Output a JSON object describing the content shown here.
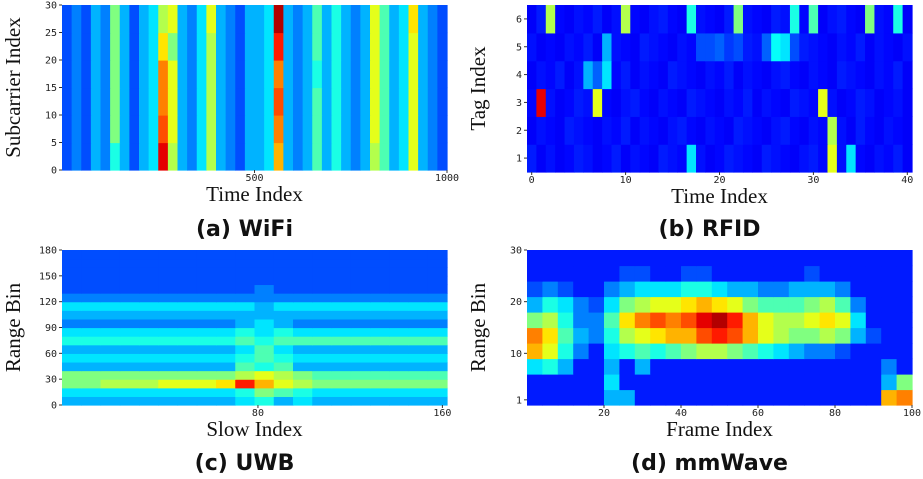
{
  "chart_data": [
    {
      "type": "heatmap",
      "caption": "(a) WiFi",
      "xlabel": "Time Index",
      "ylabel": "Subcarrier Index",
      "xlim": [
        0,
        1000
      ],
      "ylim": [
        0,
        30
      ],
      "xticks": [
        500,
        1000
      ],
      "yticks": [
        0,
        5,
        10,
        15,
        20,
        25,
        30
      ],
      "zlim": [
        0,
        1
      ],
      "colormap": "jet",
      "z": [
        [
          0.2,
          0.25,
          0.2,
          0.3,
          0.25,
          0.4,
          0.3,
          0.2,
          0.3,
          0.35,
          0.9,
          0.55,
          0.3,
          0.25,
          0.35,
          0.55,
          0.3,
          0.25,
          0.2,
          0.3,
          0.3,
          0.35,
          0.7,
          0.3,
          0.25,
          0.3,
          0.45,
          0.3,
          0.4,
          0.3,
          0.25,
          0.3,
          0.55,
          0.45,
          0.3,
          0.35,
          0.6,
          0.3,
          0.25,
          0.2
        ],
        [
          0.2,
          0.25,
          0.2,
          0.3,
          0.25,
          0.5,
          0.3,
          0.2,
          0.3,
          0.35,
          0.8,
          0.6,
          0.3,
          0.25,
          0.35,
          0.55,
          0.3,
          0.25,
          0.2,
          0.3,
          0.3,
          0.35,
          0.75,
          0.3,
          0.25,
          0.3,
          0.45,
          0.3,
          0.4,
          0.3,
          0.25,
          0.3,
          0.6,
          0.45,
          0.3,
          0.35,
          0.6,
          0.3,
          0.25,
          0.2
        ],
        [
          0.2,
          0.25,
          0.2,
          0.3,
          0.25,
          0.5,
          0.3,
          0.2,
          0.3,
          0.35,
          0.75,
          0.6,
          0.3,
          0.25,
          0.35,
          0.55,
          0.3,
          0.25,
          0.2,
          0.3,
          0.3,
          0.35,
          0.8,
          0.3,
          0.25,
          0.3,
          0.45,
          0.3,
          0.4,
          0.3,
          0.25,
          0.3,
          0.6,
          0.45,
          0.3,
          0.35,
          0.6,
          0.3,
          0.25,
          0.2
        ],
        [
          0.2,
          0.25,
          0.2,
          0.3,
          0.25,
          0.5,
          0.3,
          0.2,
          0.3,
          0.35,
          0.75,
          0.6,
          0.3,
          0.25,
          0.35,
          0.55,
          0.3,
          0.25,
          0.2,
          0.3,
          0.3,
          0.35,
          0.75,
          0.3,
          0.25,
          0.3,
          0.4,
          0.3,
          0.4,
          0.3,
          0.25,
          0.3,
          0.6,
          0.45,
          0.3,
          0.35,
          0.6,
          0.3,
          0.25,
          0.2
        ],
        [
          0.2,
          0.25,
          0.2,
          0.3,
          0.25,
          0.5,
          0.3,
          0.2,
          0.3,
          0.35,
          0.65,
          0.5,
          0.3,
          0.25,
          0.35,
          0.55,
          0.3,
          0.25,
          0.2,
          0.3,
          0.3,
          0.35,
          0.85,
          0.3,
          0.25,
          0.3,
          0.45,
          0.3,
          0.4,
          0.3,
          0.25,
          0.3,
          0.6,
          0.45,
          0.3,
          0.35,
          0.6,
          0.3,
          0.25,
          0.2
        ],
        [
          0.2,
          0.25,
          0.2,
          0.3,
          0.25,
          0.5,
          0.3,
          0.2,
          0.3,
          0.35,
          0.55,
          0.6,
          0.3,
          0.25,
          0.35,
          0.6,
          0.3,
          0.25,
          0.2,
          0.3,
          0.3,
          0.35,
          0.95,
          0.3,
          0.25,
          0.3,
          0.45,
          0.3,
          0.4,
          0.3,
          0.25,
          0.3,
          0.6,
          0.45,
          0.3,
          0.35,
          0.65,
          0.3,
          0.25,
          0.2
        ]
      ]
    },
    {
      "type": "heatmap",
      "caption": "(b) RFID",
      "xlabel": "Time Index",
      "ylabel": "Tag Index",
      "xlim": [
        -0.5,
        40.5
      ],
      "ylim": [
        0.5,
        6.5
      ],
      "xticks": [
        0,
        10,
        20,
        30,
        40
      ],
      "yticks": [
        1,
        2,
        3,
        4,
        5,
        6
      ],
      "zlim": [
        0,
        1
      ],
      "colormap": "jet",
      "z": [
        [
          0.15,
          0.12,
          0.14,
          0.12,
          0.13,
          0.15,
          0.14,
          0.12,
          0.13,
          0.15,
          0.12,
          0.14,
          0.13,
          0.12,
          0.15,
          0.14,
          0.13,
          0.35,
          0.14,
          0.12,
          0.13,
          0.15,
          0.14,
          0.13,
          0.12,
          0.15,
          0.14,
          0.13,
          0.12,
          0.14,
          0.15,
          0.13,
          0.6,
          0.14,
          0.35,
          0.13,
          0.12,
          0.14,
          0.13,
          0.15,
          0.12
        ],
        [
          0.12,
          0.14,
          0.13,
          0.12,
          0.15,
          0.14,
          0.13,
          0.12,
          0.14,
          0.13,
          0.15,
          0.12,
          0.14,
          0.13,
          0.12,
          0.14,
          0.15,
          0.13,
          0.12,
          0.14,
          0.13,
          0.12,
          0.15,
          0.14,
          0.13,
          0.12,
          0.14,
          0.15,
          0.13,
          0.12,
          0.14,
          0.13,
          0.55,
          0.14,
          0.12,
          0.15,
          0.13,
          0.12,
          0.14,
          0.13,
          0.12
        ],
        [
          0.13,
          0.9,
          0.14,
          0.12,
          0.13,
          0.15,
          0.14,
          0.6,
          0.13,
          0.12,
          0.14,
          0.15,
          0.13,
          0.12,
          0.14,
          0.13,
          0.12,
          0.15,
          0.14,
          0.13,
          0.12,
          0.14,
          0.13,
          0.15,
          0.12,
          0.14,
          0.13,
          0.12,
          0.15,
          0.14,
          0.13,
          0.6,
          0.14,
          0.12,
          0.13,
          0.15,
          0.14,
          0.12,
          0.13,
          0.14,
          0.12
        ],
        [
          0.12,
          0.14,
          0.13,
          0.15,
          0.12,
          0.14,
          0.3,
          0.22,
          0.35,
          0.13,
          0.15,
          0.12,
          0.14,
          0.13,
          0.12,
          0.15,
          0.14,
          0.13,
          0.12,
          0.14,
          0.13,
          0.15,
          0.12,
          0.14,
          0.13,
          0.12,
          0.14,
          0.15,
          0.13,
          0.12,
          0.14,
          0.13,
          0.12,
          0.15,
          0.14,
          0.13,
          0.12,
          0.14,
          0.13,
          0.15,
          0.12
        ],
        [
          0.14,
          0.12,
          0.13,
          0.12,
          0.14,
          0.13,
          0.15,
          0.12,
          0.3,
          0.14,
          0.13,
          0.12,
          0.15,
          0.14,
          0.13,
          0.12,
          0.14,
          0.13,
          0.2,
          0.2,
          0.22,
          0.18,
          0.2,
          0.15,
          0.14,
          0.22,
          0.38,
          0.35,
          0.2,
          0.15,
          0.14,
          0.13,
          0.12,
          0.14,
          0.13,
          0.15,
          0.12,
          0.14,
          0.13,
          0.12,
          0.14
        ],
        [
          0.12,
          0.15,
          0.55,
          0.13,
          0.12,
          0.14,
          0.13,
          0.15,
          0.12,
          0.14,
          0.55,
          0.13,
          0.12,
          0.14,
          0.15,
          0.13,
          0.12,
          0.4,
          0.14,
          0.13,
          0.12,
          0.15,
          0.5,
          0.14,
          0.13,
          0.12,
          0.15,
          0.14,
          0.4,
          0.13,
          0.45,
          0.12,
          0.14,
          0.15,
          0.13,
          0.12,
          0.5,
          0.14,
          0.13,
          0.4,
          0.12
        ]
      ]
    },
    {
      "type": "heatmap",
      "caption": "(c) UWB",
      "xlabel": "Slow Index",
      "ylabel": "Range Bin",
      "xlim": [
        -5,
        162
      ],
      "ylim": [
        0,
        180
      ],
      "xticks": [
        80,
        160
      ],
      "yticks": [
        0,
        30,
        60,
        90,
        120,
        150,
        180
      ],
      "zlim": [
        0,
        1
      ],
      "colormap": "jet",
      "z": [
        [
          0.3,
          0.3,
          0.3,
          0.3,
          0.3,
          0.3,
          0.3,
          0.3,
          0.3,
          0.35,
          0.4,
          0.3,
          0.35,
          0.3,
          0.3,
          0.3,
          0.3,
          0.3,
          0.3,
          0.3
        ],
        [
          0.35,
          0.35,
          0.35,
          0.35,
          0.35,
          0.35,
          0.35,
          0.35,
          0.35,
          0.4,
          0.5,
          0.45,
          0.4,
          0.35,
          0.35,
          0.35,
          0.35,
          0.35,
          0.35,
          0.35
        ],
        [
          0.5,
          0.5,
          0.55,
          0.55,
          0.55,
          0.6,
          0.6,
          0.6,
          0.65,
          0.85,
          0.7,
          0.6,
          0.55,
          0.5,
          0.5,
          0.5,
          0.5,
          0.5,
          0.5,
          0.5
        ],
        [
          0.5,
          0.5,
          0.5,
          0.5,
          0.5,
          0.5,
          0.5,
          0.5,
          0.5,
          0.55,
          0.6,
          0.55,
          0.5,
          0.45,
          0.45,
          0.45,
          0.45,
          0.45,
          0.45,
          0.45
        ],
        [
          0.3,
          0.3,
          0.3,
          0.3,
          0.3,
          0.3,
          0.3,
          0.3,
          0.3,
          0.45,
          0.4,
          0.45,
          0.3,
          0.3,
          0.3,
          0.3,
          0.3,
          0.3,
          0.3,
          0.3
        ],
        [
          0.35,
          0.35,
          0.35,
          0.35,
          0.35,
          0.35,
          0.35,
          0.35,
          0.35,
          0.4,
          0.45,
          0.4,
          0.35,
          0.35,
          0.35,
          0.35,
          0.35,
          0.35,
          0.35,
          0.35
        ],
        [
          0.3,
          0.3,
          0.3,
          0.3,
          0.3,
          0.3,
          0.3,
          0.3,
          0.3,
          0.35,
          0.45,
          0.35,
          0.3,
          0.3,
          0.3,
          0.3,
          0.3,
          0.3,
          0.3,
          0.3
        ],
        [
          0.4,
          0.4,
          0.4,
          0.4,
          0.4,
          0.4,
          0.4,
          0.4,
          0.4,
          0.45,
          0.4,
          0.45,
          0.45,
          0.45,
          0.45,
          0.45,
          0.45,
          0.45,
          0.45,
          0.45
        ],
        [
          0.35,
          0.35,
          0.35,
          0.35,
          0.35,
          0.35,
          0.35,
          0.35,
          0.35,
          0.4,
          0.35,
          0.4,
          0.35,
          0.35,
          0.35,
          0.35,
          0.35,
          0.35,
          0.35,
          0.35
        ],
        [
          0.25,
          0.25,
          0.25,
          0.25,
          0.25,
          0.25,
          0.25,
          0.25,
          0.25,
          0.3,
          0.35,
          0.3,
          0.25,
          0.25,
          0.25,
          0.25,
          0.25,
          0.25,
          0.25,
          0.25
        ],
        [
          0.3,
          0.3,
          0.3,
          0.3,
          0.3,
          0.3,
          0.3,
          0.3,
          0.3,
          0.3,
          0.3,
          0.3,
          0.3,
          0.3,
          0.3,
          0.3,
          0.3,
          0.3,
          0.3,
          0.3
        ],
        [
          0.35,
          0.35,
          0.35,
          0.35,
          0.35,
          0.35,
          0.35,
          0.35,
          0.35,
          0.35,
          0.3,
          0.35,
          0.35,
          0.35,
          0.35,
          0.35,
          0.35,
          0.35,
          0.35,
          0.35
        ],
        [
          0.25,
          0.25,
          0.25,
          0.25,
          0.25,
          0.25,
          0.25,
          0.25,
          0.25,
          0.25,
          0.25,
          0.25,
          0.25,
          0.25,
          0.25,
          0.25,
          0.25,
          0.25,
          0.25,
          0.25
        ],
        [
          0.2,
          0.2,
          0.2,
          0.2,
          0.2,
          0.2,
          0.2,
          0.2,
          0.2,
          0.2,
          0.25,
          0.2,
          0.2,
          0.2,
          0.2,
          0.2,
          0.2,
          0.2,
          0.2,
          0.2
        ],
        [
          0.2,
          0.2,
          0.2,
          0.2,
          0.2,
          0.2,
          0.2,
          0.2,
          0.2,
          0.2,
          0.2,
          0.2,
          0.2,
          0.2,
          0.2,
          0.2,
          0.2,
          0.2,
          0.2,
          0.2
        ],
        [
          0.2,
          0.2,
          0.2,
          0.2,
          0.2,
          0.2,
          0.2,
          0.2,
          0.2,
          0.2,
          0.2,
          0.2,
          0.2,
          0.2,
          0.2,
          0.2,
          0.2,
          0.2,
          0.2,
          0.2
        ],
        [
          0.2,
          0.2,
          0.2,
          0.2,
          0.2,
          0.2,
          0.2,
          0.2,
          0.2,
          0.2,
          0.2,
          0.2,
          0.2,
          0.2,
          0.2,
          0.2,
          0.2,
          0.2,
          0.2,
          0.2
        ],
        [
          0.2,
          0.2,
          0.2,
          0.2,
          0.2,
          0.2,
          0.2,
          0.2,
          0.2,
          0.2,
          0.2,
          0.2,
          0.2,
          0.2,
          0.2,
          0.2,
          0.2,
          0.2,
          0.2,
          0.2
        ]
      ]
    },
    {
      "type": "heatmap",
      "caption": "(d) mmWave",
      "xlabel": "Frame Index",
      "ylabel": "Range Bin",
      "xlim": [
        0,
        100
      ],
      "ylim": [
        0,
        30
      ],
      "xticks": [
        20,
        40,
        60,
        80,
        100
      ],
      "yticks": [
        1,
        10,
        20,
        30
      ],
      "zlim": [
        0,
        1
      ],
      "colormap": "jet",
      "z": [
        [
          0.15,
          0.15,
          0.15,
          0.15,
          0.15,
          0.3,
          0.3,
          0.15,
          0.15,
          0.15,
          0.15,
          0.15,
          0.15,
          0.15,
          0.15,
          0.15,
          0.15,
          0.15,
          0.15,
          0.15,
          0.15,
          0.15,
          0.15,
          0.7,
          0.75
        ],
        [
          0.15,
          0.15,
          0.15,
          0.15,
          0.15,
          0.35,
          0.15,
          0.15,
          0.15,
          0.15,
          0.15,
          0.15,
          0.15,
          0.15,
          0.15,
          0.15,
          0.15,
          0.15,
          0.15,
          0.15,
          0.15,
          0.15,
          0.15,
          0.3,
          0.5
        ],
        [
          0.35,
          0.4,
          0.3,
          0.15,
          0.15,
          0.3,
          0.15,
          0.3,
          0.15,
          0.15,
          0.15,
          0.15,
          0.15,
          0.15,
          0.15,
          0.15,
          0.15,
          0.15,
          0.15,
          0.15,
          0.15,
          0.15,
          0.15,
          0.25,
          0.15
        ],
        [
          0.7,
          0.6,
          0.4,
          0.25,
          0.15,
          0.35,
          0.4,
          0.45,
          0.4,
          0.45,
          0.5,
          0.55,
          0.55,
          0.5,
          0.45,
          0.4,
          0.35,
          0.3,
          0.25,
          0.25,
          0.2,
          0.15,
          0.15,
          0.15,
          0.15
        ],
        [
          0.75,
          0.65,
          0.45,
          0.3,
          0.25,
          0.4,
          0.55,
          0.6,
          0.65,
          0.7,
          0.7,
          0.8,
          0.85,
          0.8,
          0.7,
          0.6,
          0.55,
          0.5,
          0.5,
          0.55,
          0.5,
          0.3,
          0.2,
          0.15,
          0.15
        ],
        [
          0.5,
          0.55,
          0.4,
          0.25,
          0.25,
          0.45,
          0.65,
          0.75,
          0.8,
          0.75,
          0.8,
          0.9,
          0.95,
          0.85,
          0.7,
          0.6,
          0.55,
          0.55,
          0.6,
          0.65,
          0.6,
          0.35,
          0.15,
          0.15,
          0.15
        ],
        [
          0.3,
          0.4,
          0.35,
          0.25,
          0.2,
          0.35,
          0.5,
          0.55,
          0.6,
          0.6,
          0.65,
          0.7,
          0.65,
          0.6,
          0.5,
          0.45,
          0.45,
          0.45,
          0.5,
          0.55,
          0.45,
          0.25,
          0.15,
          0.15,
          0.15
        ],
        [
          0.2,
          0.25,
          0.2,
          0.15,
          0.15,
          0.25,
          0.3,
          0.35,
          0.35,
          0.35,
          0.4,
          0.4,
          0.35,
          0.3,
          0.3,
          0.25,
          0.25,
          0.3,
          0.3,
          0.3,
          0.25,
          0.15,
          0.15,
          0.15,
          0.15
        ],
        [
          0.15,
          0.15,
          0.15,
          0.15,
          0.15,
          0.15,
          0.2,
          0.2,
          0.15,
          0.15,
          0.2,
          0.2,
          0.15,
          0.15,
          0.15,
          0.15,
          0.15,
          0.15,
          0.2,
          0.15,
          0.15,
          0.15,
          0.15,
          0.15,
          0.15
        ],
        [
          0.15,
          0.15,
          0.15,
          0.15,
          0.15,
          0.15,
          0.15,
          0.15,
          0.15,
          0.15,
          0.15,
          0.15,
          0.15,
          0.15,
          0.15,
          0.15,
          0.15,
          0.15,
          0.15,
          0.15,
          0.15,
          0.15,
          0.15,
          0.15,
          0.15
        ]
      ]
    }
  ]
}
